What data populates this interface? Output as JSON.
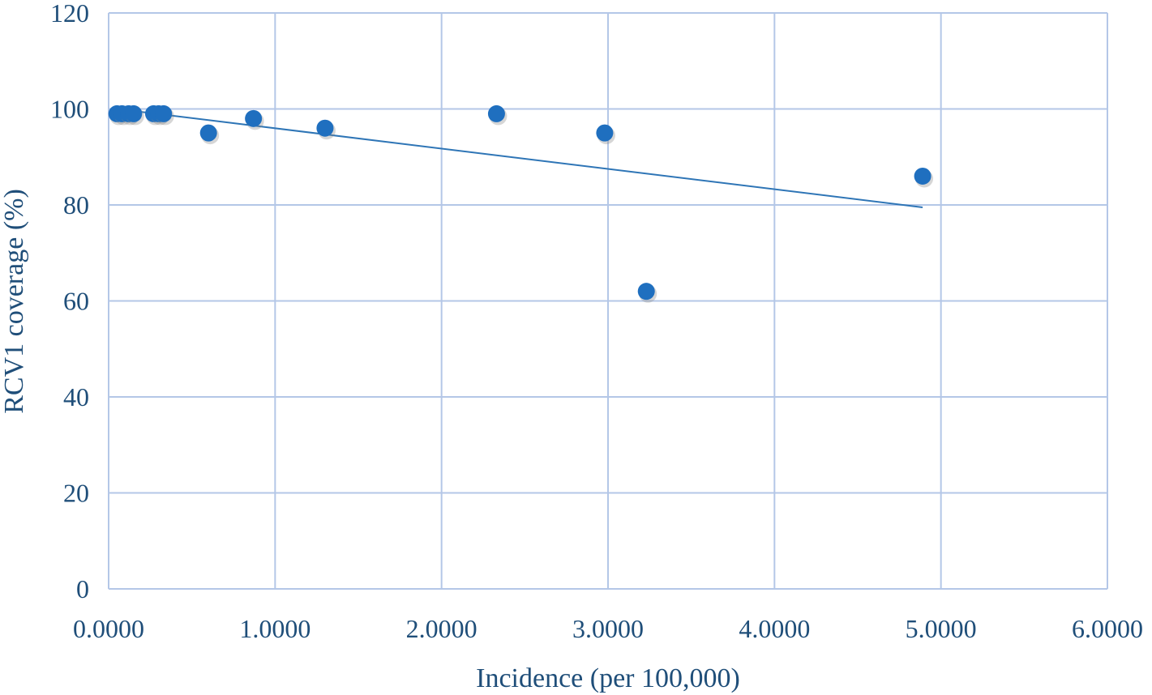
{
  "chart_data": {
    "type": "scatter",
    "title": "",
    "xlabel": "Incidence (per 100,000)",
    "ylabel": "RCV1 coverage (%)",
    "xlim": [
      0,
      6
    ],
    "ylim": [
      0,
      120
    ],
    "x_ticks": [
      {
        "value": 0,
        "label": "0.0000"
      },
      {
        "value": 1,
        "label": "1.0000"
      },
      {
        "value": 2,
        "label": "2.0000"
      },
      {
        "value": 3,
        "label": "3.0000"
      },
      {
        "value": 4,
        "label": "4.0000"
      },
      {
        "value": 5,
        "label": "5.0000"
      },
      {
        "value": 6,
        "label": "6.0000"
      }
    ],
    "y_ticks": [
      {
        "value": 0,
        "label": "0"
      },
      {
        "value": 20,
        "label": "20"
      },
      {
        "value": 40,
        "label": "40"
      },
      {
        "value": 60,
        "label": "60"
      },
      {
        "value": 80,
        "label": "80"
      },
      {
        "value": 100,
        "label": "100"
      },
      {
        "value": 120,
        "label": "120"
      }
    ],
    "grid": true,
    "legend": "none",
    "series": [
      {
        "points": [
          {
            "x": 0.05,
            "y": 99
          },
          {
            "x": 0.08,
            "y": 99
          },
          {
            "x": 0.12,
            "y": 99
          },
          {
            "x": 0.15,
            "y": 99
          },
          {
            "x": 0.27,
            "y": 99
          },
          {
            "x": 0.3,
            "y": 99
          },
          {
            "x": 0.33,
            "y": 99
          },
          {
            "x": 0.6,
            "y": 95
          },
          {
            "x": 0.87,
            "y": 98
          },
          {
            "x": 1.3,
            "y": 96
          },
          {
            "x": 2.33,
            "y": 99
          },
          {
            "x": 2.98,
            "y": 95
          },
          {
            "x": 3.23,
            "y": 62
          },
          {
            "x": 4.89,
            "y": 86
          }
        ]
      }
    ],
    "trendline": {
      "type": "linear",
      "from": {
        "x": 0.05,
        "y": 100.0
      },
      "to": {
        "x": 4.89,
        "y": 79.5
      }
    },
    "colors": {
      "points": "#1f6fbf",
      "trendline": "#2e75b6",
      "grid": "#b4c7e7",
      "text": "#1f4e79"
    }
  }
}
